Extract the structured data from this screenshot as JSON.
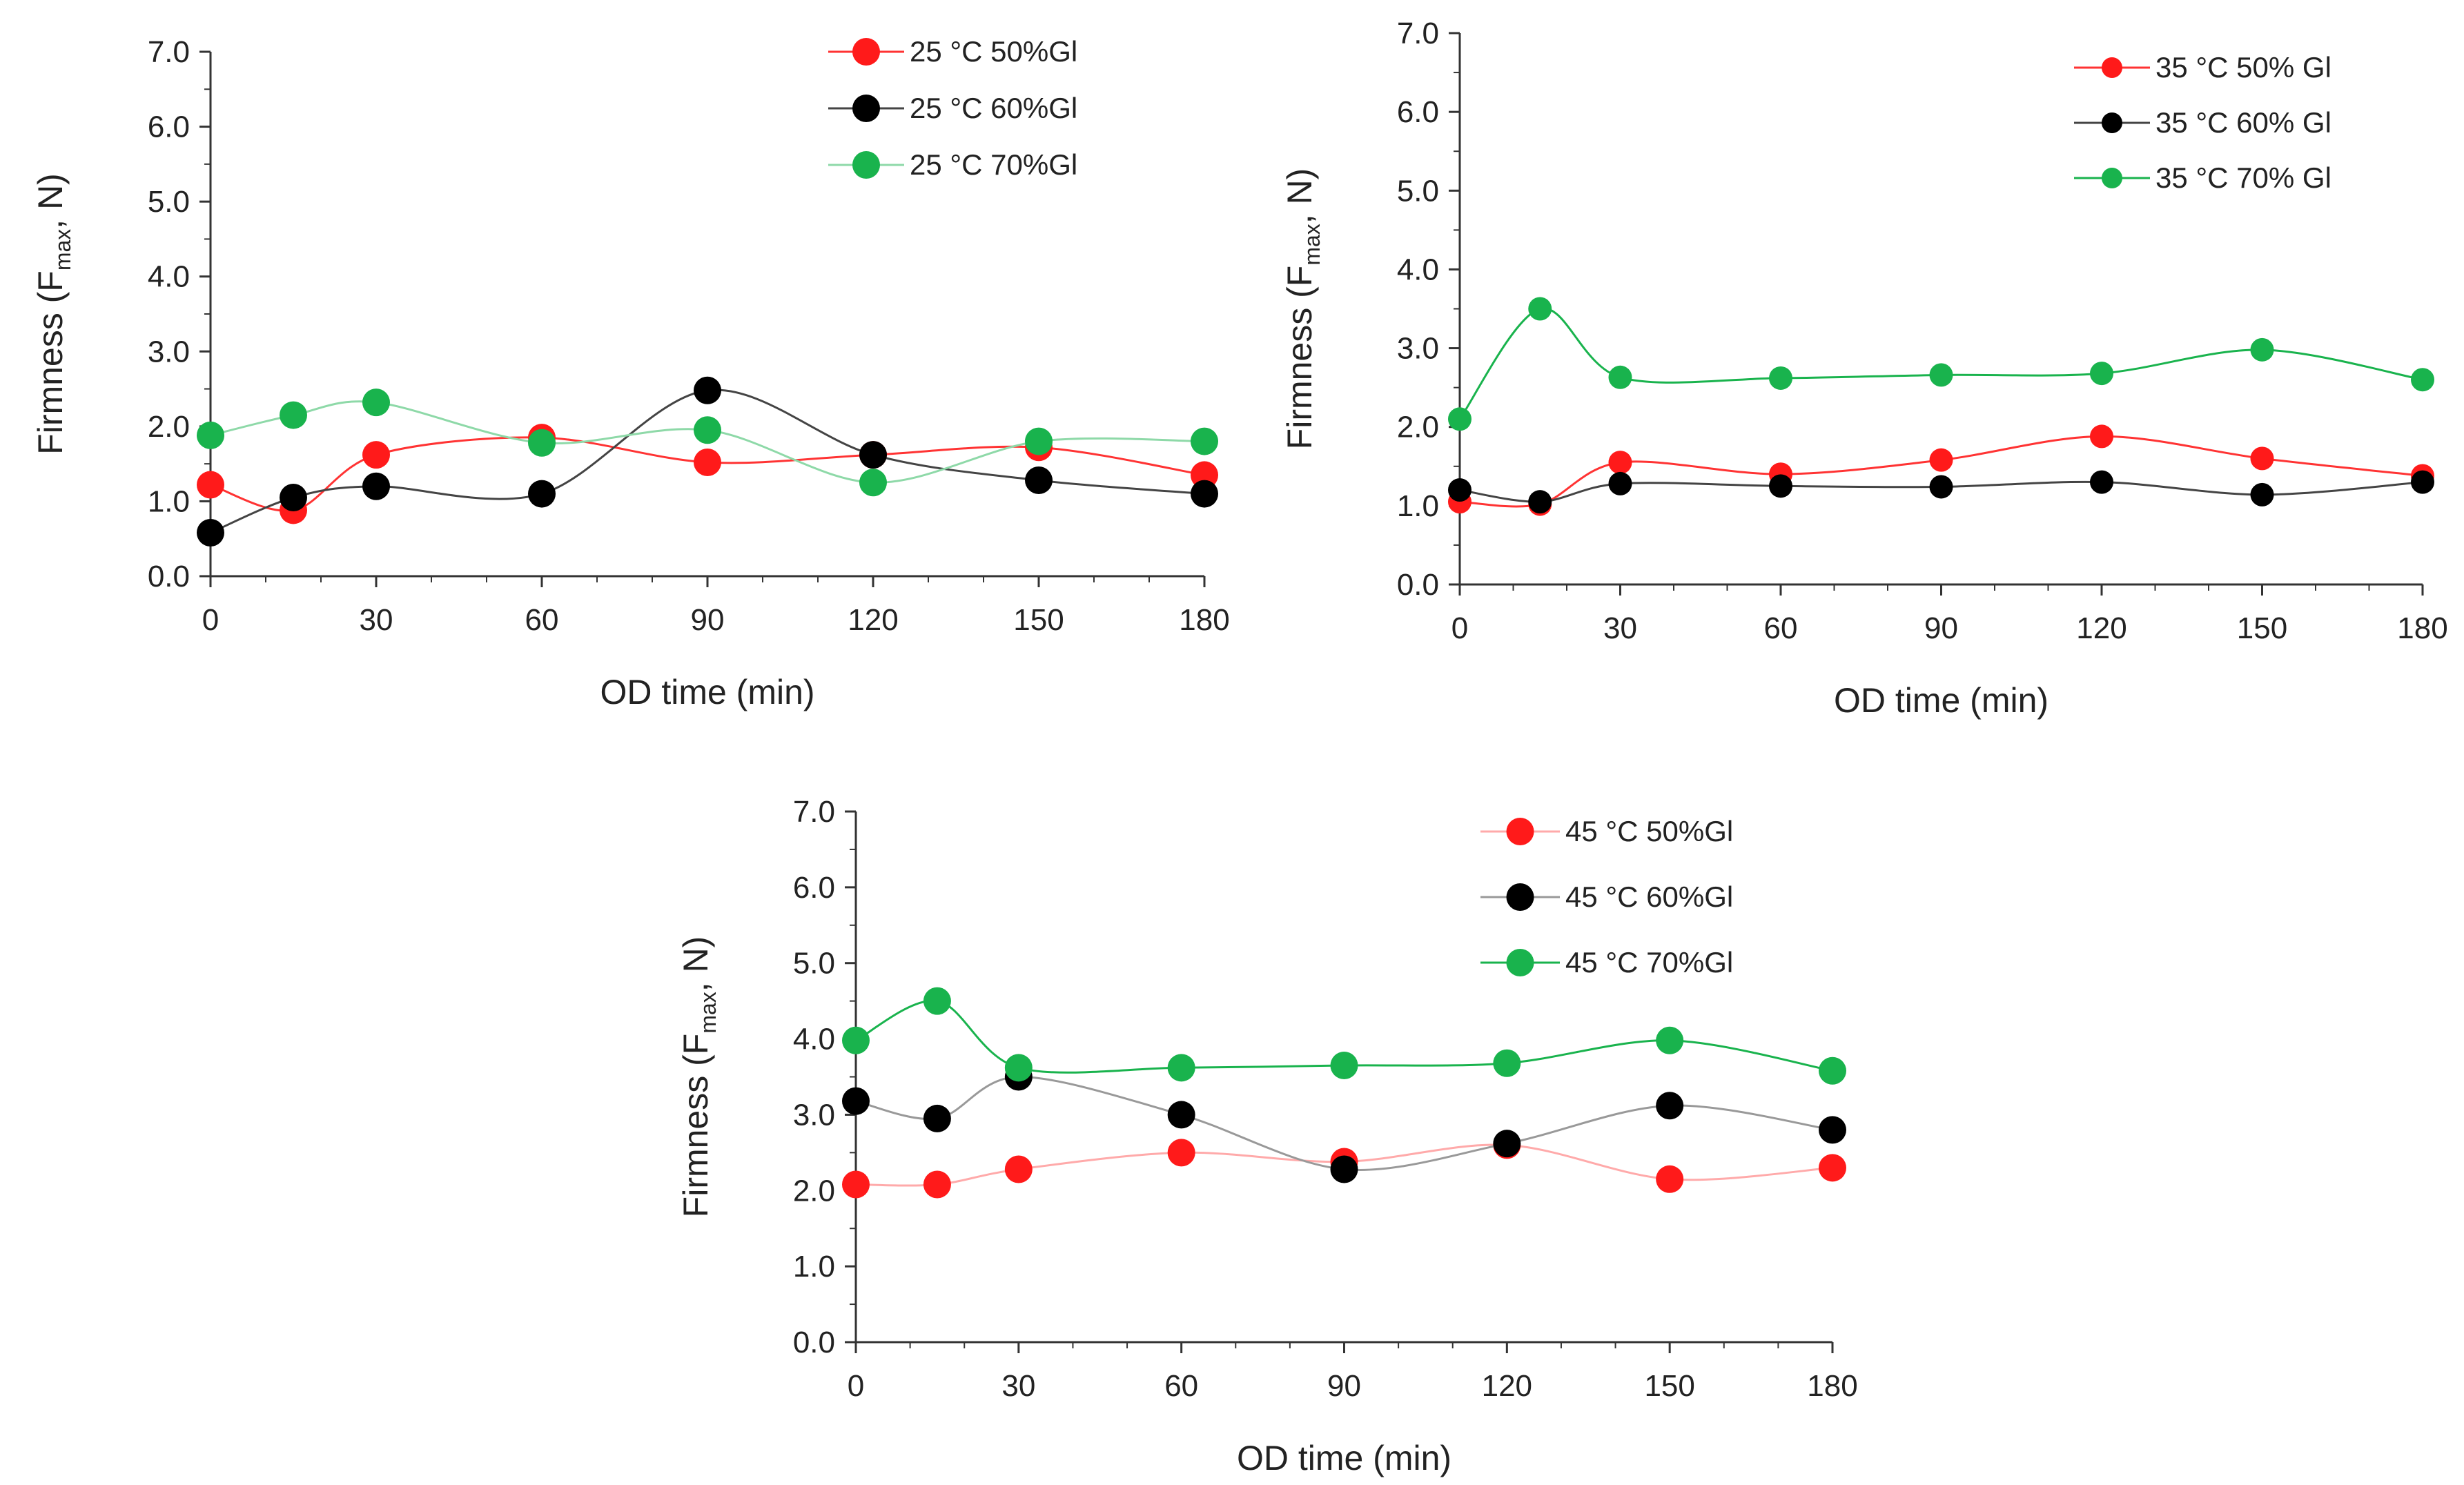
{
  "chart_data": [
    {
      "type": "line",
      "title": "",
      "xlabel": "OD time (min)",
      "ylabel_main": "Firmness (F",
      "ylabel_sub": "max",
      "ylabel_tail": ",  N)",
      "xlim": [
        0,
        180
      ],
      "ylim": [
        0,
        7
      ],
      "xticks": [
        "0",
        "30",
        "60",
        "90",
        "120",
        "150",
        "180"
      ],
      "yticks": [
        "0.0",
        "1.0",
        "2.0",
        "3.0",
        "4.0",
        "5.0",
        "6.0",
        "7.0"
      ],
      "grid": false,
      "legend_position": "top-right",
      "x": [
        0,
        15,
        30,
        60,
        90,
        120,
        150,
        180
      ],
      "series": [
        {
          "name": "25 °C 50%Gl",
          "color": "#ff1a1a",
          "line": "#ff3333",
          "values": [
            1.22,
            0.88,
            1.62,
            1.85,
            1.52,
            1.62,
            1.72,
            1.35
          ]
        },
        {
          "name": "25 °C 60%Gl",
          "color": "#000000",
          "line": "#444444",
          "values": [
            0.58,
            1.05,
            1.2,
            1.1,
            2.48,
            1.62,
            1.28,
            1.1
          ]
        },
        {
          "name": "25 °C 70%Gl",
          "color": "#19b34d",
          "line": "#8ed9a8",
          "values": [
            1.88,
            2.15,
            2.32,
            1.78,
            1.95,
            1.25,
            1.8,
            1.8
          ]
        }
      ]
    },
    {
      "type": "line",
      "title": "",
      "xlabel": "OD time (min)",
      "ylabel_main": "Firmness (F",
      "ylabel_sub": "max",
      "ylabel_tail": ",  N)",
      "xlim": [
        0,
        180
      ],
      "ylim": [
        0,
        7
      ],
      "xticks": [
        "0",
        "30",
        "60",
        "90",
        "120",
        "150",
        "180"
      ],
      "yticks": [
        "0.0",
        "1.0",
        "2.0",
        "3.0",
        "4.0",
        "5.0",
        "6.0",
        "7.0"
      ],
      "grid": false,
      "legend_position": "top-right",
      "x": [
        0,
        15,
        30,
        60,
        90,
        120,
        150,
        180
      ],
      "series": [
        {
          "name": "35 °C 50% Gl",
          "color": "#ff1a1a",
          "line": "#ff3333",
          "values": [
            1.05,
            1.02,
            1.55,
            1.4,
            1.58,
            1.88,
            1.6,
            1.38
          ]
        },
        {
          "name": "35 °C 60% Gl",
          "color": "#000000",
          "line": "#444444",
          "values": [
            1.2,
            1.05,
            1.28,
            1.25,
            1.24,
            1.3,
            1.14,
            1.3
          ]
        },
        {
          "name": "35 °C 70% Gl",
          "color": "#19b34d",
          "line": "#19b34d",
          "values": [
            2.1,
            3.5,
            2.63,
            2.62,
            2.66,
            2.68,
            2.98,
            2.6
          ]
        }
      ]
    },
    {
      "type": "line",
      "title": "",
      "xlabel": "OD time (min)",
      "ylabel_main": "Firmness (F",
      "ylabel_sub": "max",
      "ylabel_tail": ",  N)",
      "xlim": [
        0,
        180
      ],
      "ylim": [
        0,
        7
      ],
      "xticks": [
        "0",
        "30",
        "60",
        "90",
        "120",
        "150",
        "180"
      ],
      "yticks": [
        "0.0",
        "1.0",
        "2.0",
        "3.0",
        "4.0",
        "5.0",
        "6.0",
        "7.0"
      ],
      "grid": false,
      "legend_position": "top-right",
      "x": [
        0,
        15,
        30,
        60,
        90,
        120,
        150,
        180
      ],
      "series": [
        {
          "name": "45 °C 50%Gl",
          "color": "#ff1a1a",
          "line": "#ffaaaa",
          "values": [
            2.08,
            2.08,
            2.28,
            2.5,
            2.38,
            2.6,
            2.15,
            2.3
          ]
        },
        {
          "name": "45 °C 60%Gl",
          "color": "#000000",
          "line": "#999999",
          "values": [
            3.18,
            2.95,
            3.5,
            3.0,
            2.28,
            2.62,
            3.12,
            2.8
          ]
        },
        {
          "name": "45 °C 70%Gl",
          "color": "#19b34d",
          "line": "#19b34d",
          "values": [
            3.98,
            4.5,
            3.62,
            3.62,
            3.65,
            3.68,
            3.98,
            3.58
          ]
        }
      ]
    }
  ]
}
